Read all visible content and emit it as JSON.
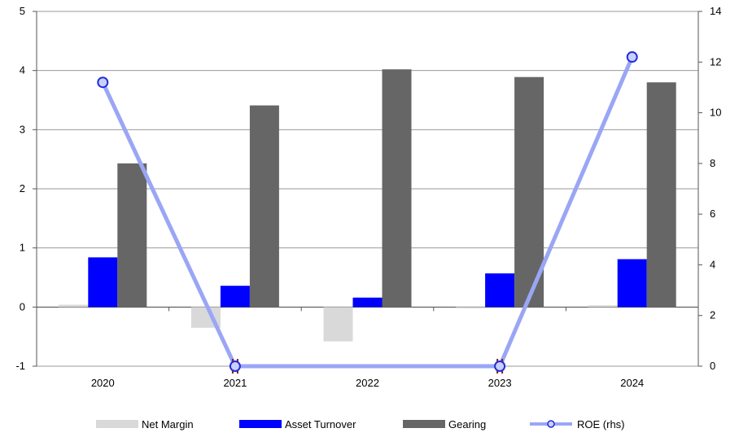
{
  "chart_data": {
    "type": "bar",
    "categories": [
      "2020",
      "2021",
      "2022",
      "2023",
      "2024"
    ],
    "series": [
      {
        "name": "Net Margin",
        "kind": "bar",
        "axis": "left",
        "color": "#d9d9d9",
        "values": [
          0.04,
          -0.35,
          -0.58,
          -0.02,
          0.03
        ]
      },
      {
        "name": "Asset Turnover",
        "kind": "bar",
        "axis": "left",
        "color": "#0000ff",
        "values": [
          0.84,
          0.36,
          0.16,
          0.57,
          0.81
        ]
      },
      {
        "name": "Gearing",
        "kind": "bar",
        "axis": "left",
        "color": "#666666",
        "values": [
          2.43,
          3.41,
          4.02,
          3.89,
          3.8
        ]
      },
      {
        "name": "ROE (rhs)",
        "kind": "line",
        "axis": "right",
        "color": "#9aa6f5",
        "marker_color": "#1f2fd6",
        "values": [
          11.2,
          0.0,
          null,
          0.0,
          12.2
        ]
      }
    ],
    "left_axis": {
      "min": -1,
      "max": 5,
      "ticks": [
        "-1",
        "0",
        "1",
        "2",
        "3",
        "4",
        "5"
      ]
    },
    "right_axis": {
      "min": 0,
      "max": 14,
      "ticks": [
        "0",
        "2",
        "4",
        "6",
        "8",
        "10",
        "12",
        "14"
      ]
    },
    "legend_position": "bottom",
    "title": "",
    "xlabel": "",
    "ylabel": ""
  }
}
